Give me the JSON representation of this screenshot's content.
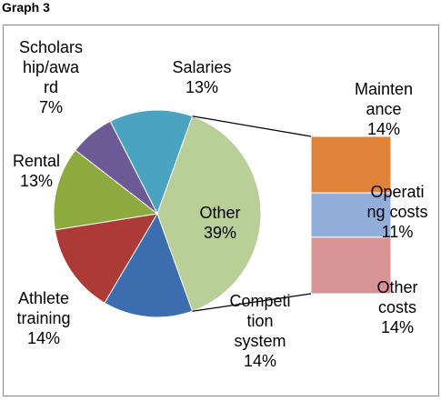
{
  "page": {
    "caption": "Graph 3"
  },
  "chart_data": {
    "type": "pie",
    "title": "",
    "slices": [
      {
        "lines": [
          "Salaries",
          "13%"
        ],
        "value": 13,
        "color": "#4aa3c0"
      },
      {
        "lines": [
          "Other",
          "39%"
        ],
        "value": 39,
        "color": "#b8cf98"
      },
      {
        "lines": [
          "Competi",
          "tion",
          "system",
          "14%"
        ],
        "value": 14,
        "color": "#3c6daf"
      },
      {
        "lines": [
          "Athlete",
          "training",
          "14%"
        ],
        "value": 14,
        "color": "#ac3b37"
      },
      {
        "lines": [
          "Rental",
          "13%"
        ],
        "value": 13,
        "color": "#8caa3e"
      },
      {
        "lines": [
          "Scholars",
          "hip/awa",
          "rd",
          "7%"
        ],
        "value": 7,
        "color": "#6c5a96"
      }
    ],
    "breakdown_of": "Other",
    "breakdown": [
      {
        "lines": [
          "Mainten",
          "ance",
          "14%"
        ],
        "value": 14,
        "color": "#e0833a"
      },
      {
        "lines": [
          "Operati",
          "ng costs",
          "11%"
        ],
        "value": 11,
        "color": "#94aedb"
      },
      {
        "lines": [
          "Other",
          "costs",
          "14%"
        ],
        "value": 14,
        "color": "#d89494"
      }
    ]
  }
}
